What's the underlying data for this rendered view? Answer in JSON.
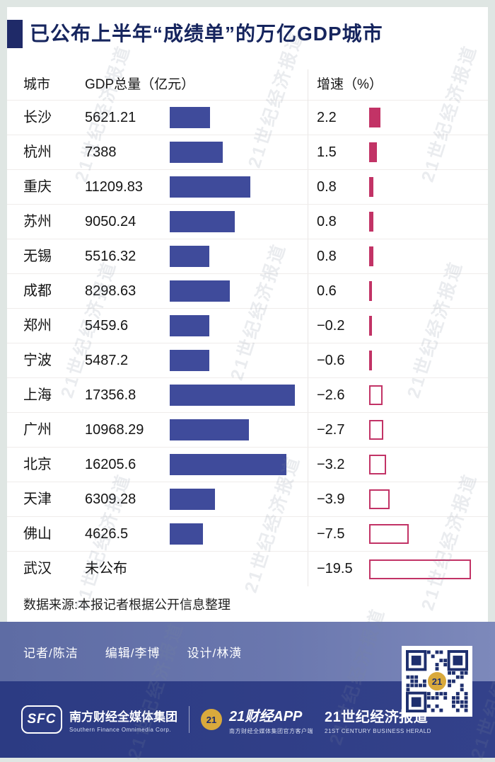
{
  "title": "已公布上半年“成绩单”的万亿GDP城市",
  "table": {
    "headers": {
      "city": "城市",
      "gdp": "GDP总量（亿元）",
      "growth": "增速（%）"
    },
    "rows": [
      {
        "city": "长沙",
        "gdp_text": "5621.21",
        "gdp_value": 5621.21,
        "growth_text": "2.2",
        "growth_value": 2.2
      },
      {
        "city": "杭州",
        "gdp_text": "7388",
        "gdp_value": 7388,
        "growth_text": "1.5",
        "growth_value": 1.5
      },
      {
        "city": "重庆",
        "gdp_text": "11209.83",
        "gdp_value": 11209.83,
        "growth_text": "0.8",
        "growth_value": 0.8
      },
      {
        "city": "苏州",
        "gdp_text": "9050.24",
        "gdp_value": 9050.24,
        "growth_text": "0.8",
        "growth_value": 0.8
      },
      {
        "city": "无锡",
        "gdp_text": "5516.32",
        "gdp_value": 5516.32,
        "growth_text": "0.8",
        "growth_value": 0.8
      },
      {
        "city": "成都",
        "gdp_text": "8298.63",
        "gdp_value": 8298.63,
        "growth_text": "0.6",
        "growth_value": 0.6
      },
      {
        "city": "郑州",
        "gdp_text": "5459.6",
        "gdp_value": 5459.6,
        "growth_text": "−0.2",
        "growth_value": -0.2
      },
      {
        "city": "宁波",
        "gdp_text": "5487.2",
        "gdp_value": 5487.2,
        "growth_text": "−0.6",
        "growth_value": -0.6
      },
      {
        "city": "上海",
        "gdp_text": "17356.8",
        "gdp_value": 17356.8,
        "growth_text": "−2.6",
        "growth_value": -2.6
      },
      {
        "city": "广州",
        "gdp_text": "10968.29",
        "gdp_value": 10968.29,
        "growth_text": "−2.7",
        "growth_value": -2.7
      },
      {
        "city": "北京",
        "gdp_text": "16205.6",
        "gdp_value": 16205.6,
        "growth_text": "−3.2",
        "growth_value": -3.2
      },
      {
        "city": "天津",
        "gdp_text": "6309.28",
        "gdp_value": 6309.28,
        "growth_text": "−3.9",
        "growth_value": -3.9
      },
      {
        "city": "佛山",
        "gdp_text": "4626.5",
        "gdp_value": 4626.5,
        "growth_text": "−7.5",
        "growth_value": -7.5
      },
      {
        "city": "武汉",
        "gdp_text": "未公布",
        "gdp_value": null,
        "growth_text": "−19.5",
        "growth_value": -19.5
      }
    ]
  },
  "source": "数据来源:本报记者根据公开信息整理",
  "credits": {
    "reporter": "记者/陈洁",
    "editor": "编辑/李博",
    "designer": "设计/林潢"
  },
  "footer": {
    "sfc_logo": "SFC",
    "sfc_name": "南方财经全媒体集团",
    "sfc_name_en": "Southern Finance Omnimedia Corp.",
    "app_badge": "21",
    "app_name": "21财经APP",
    "app_sub": "南方财经全媒体集团官方客户端",
    "herald_name": "21世纪经济报道",
    "herald_en": "21ST CENTURY BUSINESS HERALD",
    "qr_badge": "21"
  },
  "watermark": "21世纪经济报道",
  "colors": {
    "gdp_bar": "#3f4b9b",
    "growth_positive": "#c23366",
    "growth_negative_border": "#c23366",
    "title_navy": "#16255e",
    "band_credits": "#63719f",
    "band_footer": "#2e3d85",
    "qr_gold": "#d9a93c"
  },
  "chart_data": {
    "type": "bar",
    "orientation": "horizontal",
    "title": "已公布上半年“成绩单”的万亿GDP城市",
    "categories": [
      "长沙",
      "杭州",
      "重庆",
      "苏州",
      "无锡",
      "成都",
      "郑州",
      "宁波",
      "上海",
      "广州",
      "北京",
      "天津",
      "佛山",
      "武汉"
    ],
    "series": [
      {
        "name": "GDP总量（亿元）",
        "values": [
          5621.21,
          7388,
          11209.83,
          9050.24,
          5516.32,
          8298.63,
          5459.6,
          5487.2,
          17356.8,
          10968.29,
          16205.6,
          6309.28,
          4626.5,
          null
        ]
      },
      {
        "name": "增速（%）",
        "values": [
          2.2,
          1.5,
          0.8,
          0.8,
          0.8,
          0.6,
          -0.2,
          -0.6,
          -2.6,
          -2.7,
          -3.2,
          -3.9,
          -7.5,
          -19.5
        ]
      }
    ],
    "notes": "武汉 GDP总量 未公布；正增速为实心色条，负增速为空心描边条",
    "legend": "none",
    "grid": "off",
    "gdp_axis_max": 17356.8
  }
}
